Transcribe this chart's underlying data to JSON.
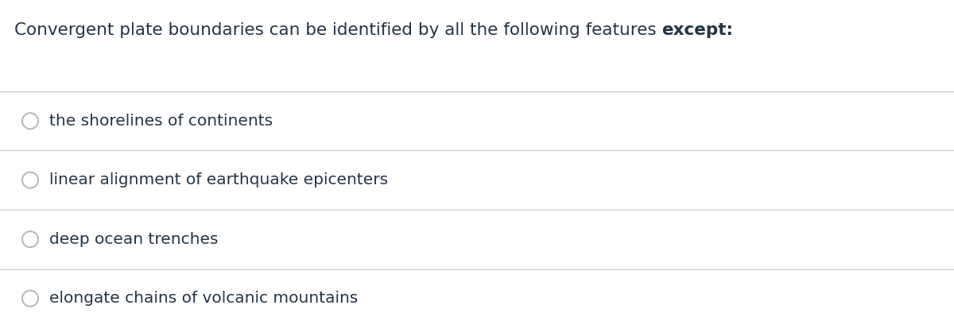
{
  "title_normal": "Convergent plate boundaries can be identified by all the following features ",
  "title_bold": "except:",
  "options": [
    "the shorelines of continents",
    "linear alignment of earthquake epicenters",
    "deep ocean trenches",
    "elongate chains of volcanic mountains"
  ],
  "background_color": "#ffffff",
  "text_color": "#253545",
  "line_color": "#cccccc",
  "circle_color": "#bbbbbb",
  "title_fontsize": 15.5,
  "option_fontsize": 14.5,
  "fig_width": 12.0,
  "fig_height": 4.23,
  "dpi": 100
}
